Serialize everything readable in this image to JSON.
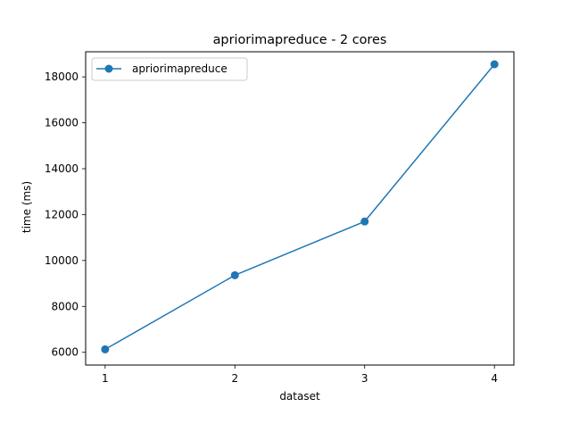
{
  "chart_data": {
    "type": "line",
    "title": "apriorimapreduce - 2 cores",
    "xlabel": "dataset",
    "ylabel": "time (ms)",
    "x": [
      1,
      2,
      3,
      4
    ],
    "xticks": [
      "1",
      "2",
      "3",
      "4"
    ],
    "yticks": [
      "6000",
      "8000",
      "10000",
      "12000",
      "14000",
      "16000",
      "18000"
    ],
    "xlim": [
      0.85,
      4.15
    ],
    "ylim": [
      5445,
      19095
    ],
    "grid": false,
    "legend_location": "upper left",
    "series": [
      {
        "name": "apriorimapreduce",
        "values": [
          6130,
          9360,
          11700,
          18550
        ],
        "color": "#1f77b4",
        "marker": "circle"
      }
    ]
  }
}
